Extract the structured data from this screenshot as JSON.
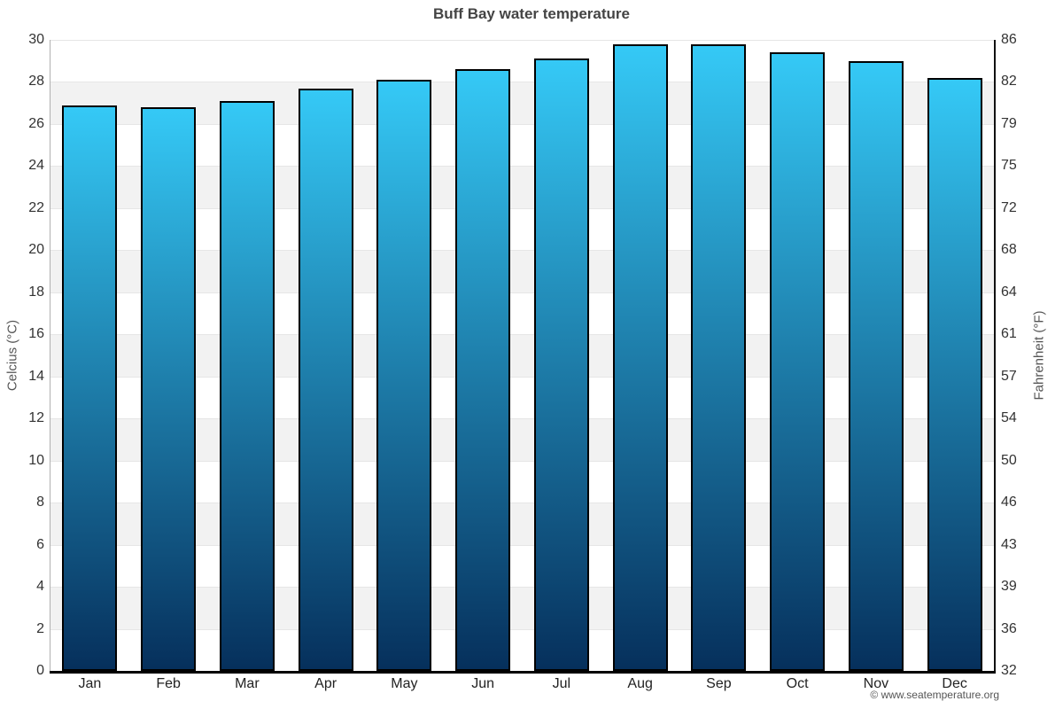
{
  "title": "Buff Bay water temperature",
  "footer": {
    "copyright": "© www.seatemperature.org"
  },
  "chart_data": {
    "type": "bar",
    "title": "Buff Bay water temperature",
    "categories": [
      "Jan",
      "Feb",
      "Mar",
      "Apr",
      "May",
      "Jun",
      "Jul",
      "Aug",
      "Sep",
      "Oct",
      "Nov",
      "Dec"
    ],
    "values_celsius": [
      26.9,
      26.8,
      27.1,
      27.7,
      28.1,
      28.6,
      29.1,
      29.8,
      29.8,
      29.4,
      29.0,
      28.2
    ],
    "ylabel_left": "Celcius (°C)",
    "ylabel_right": "Fahrenheit (°F)",
    "ylim_celsius": [
      0,
      30
    ],
    "yticks_celsius": [
      0,
      2,
      4,
      6,
      8,
      10,
      12,
      14,
      16,
      18,
      20,
      22,
      24,
      26,
      28,
      30
    ],
    "yticks_fahrenheit_labels": [
      "32",
      "36",
      "39",
      "43",
      "46",
      "50",
      "54",
      "57",
      "61",
      "64",
      "68",
      "72",
      "75",
      "79",
      "82",
      "86"
    ],
    "legend": "none",
    "grid": "horizontal gridlines every 2°C with alternating background bands",
    "colors": {
      "bar_gradient_top": "#35c9f6",
      "bar_gradient_bottom": "#06305c",
      "bar_border": "#000000",
      "band_white": "#ffffff",
      "band_alt": "#f2f2f2",
      "gridline": "#e6e6e6",
      "axis_left_line": "#b0b0b0",
      "axis_right_line": "#111111",
      "axis_bottom_line": "#000000",
      "title_color": "#444444",
      "tick_label_color": "#333333",
      "axis_title_color": "#555555",
      "footer_color": "#555555"
    }
  }
}
